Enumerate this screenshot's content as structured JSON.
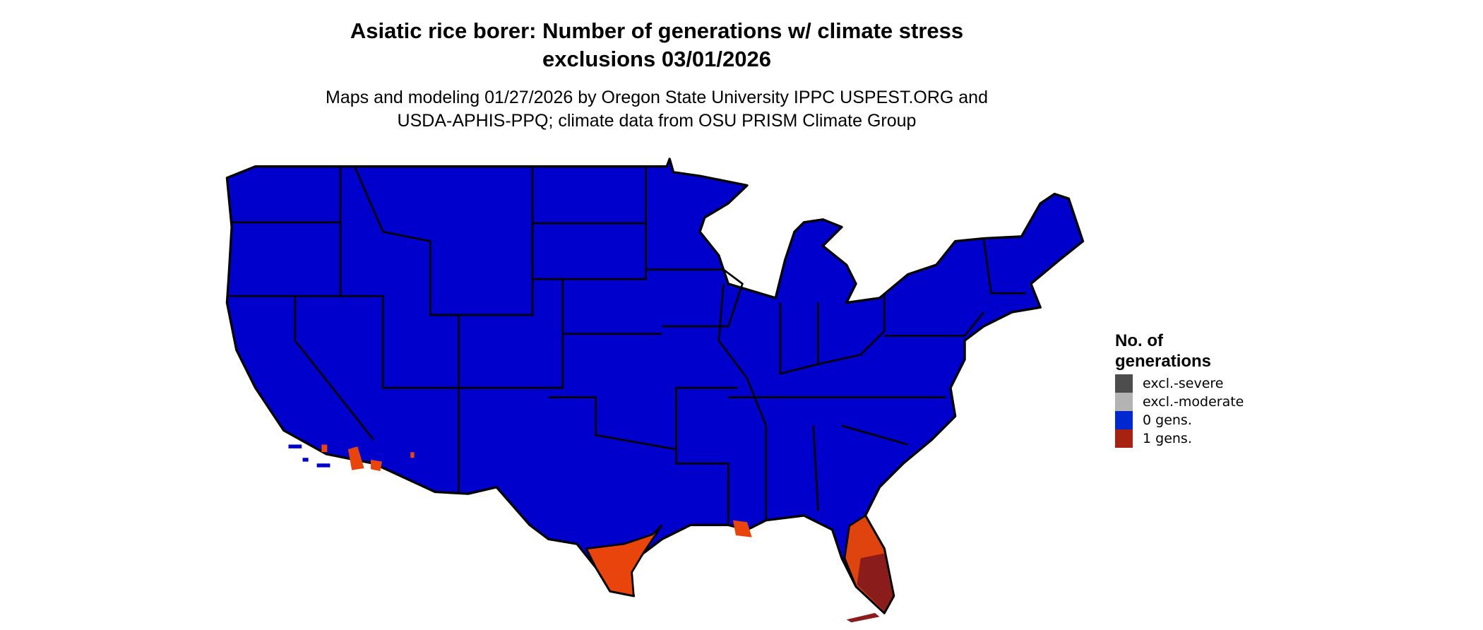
{
  "title_line1": "Asiatic rice borer: Number of generations w/ climate stress",
  "title_line2": "exclusions 03/01/2026",
  "subtitle_line1": "Maps and modeling 01/27/2026 by Oregon State University IPPC USPEST.ORG and",
  "subtitle_line2": "USDA-APHIS-PPQ; climate data from OSU PRISM Climate Group",
  "legend": {
    "title_line1": "No. of",
    "title_line2": "generations",
    "items": [
      {
        "label": "excl.-severe",
        "color": "#4d4d4d"
      },
      {
        "label": "excl.-moderate",
        "color": "#b3b3b3"
      },
      {
        "label": "0 gens.",
        "color": "#0028d0"
      },
      {
        "label": "1 gens.",
        "color": "#a82212"
      }
    ]
  },
  "map_colors": {
    "zero_gens": "#0000cc",
    "one_gen_light": "#e8440c",
    "one_gen_dark": "#8b1c1c",
    "border": "#000000"
  }
}
